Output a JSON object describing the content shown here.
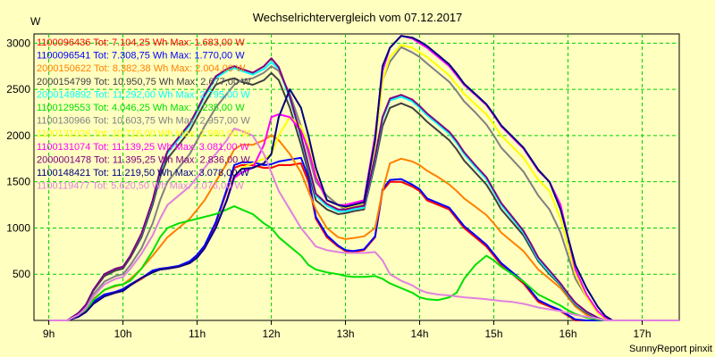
{
  "chart_data": {
    "type": "line",
    "title": "Wechselrichtervergleich vom 07.12.2017",
    "ylabel": "W",
    "xlabel": "",
    "footer": "SunnyReport pinxit",
    "xlim": [
      8.8,
      17.5
    ],
    "ylim": [
      0,
      3100
    ],
    "x_ticks": [
      9,
      10,
      11,
      12,
      13,
      14,
      15,
      16,
      17
    ],
    "x_tick_labels": [
      "9h",
      "10h",
      "11h",
      "12h",
      "13h",
      "14h",
      "15h",
      "16h",
      "17h"
    ],
    "y_ticks": [
      500,
      1000,
      1500,
      2000,
      2500,
      3000
    ],
    "y_tick_labels": [
      "500",
      "1000",
      "1500",
      "2000",
      "2500",
      "3000"
    ],
    "grid": true,
    "legend_position": "top-left",
    "x": [
      9.0,
      9.1,
      9.25,
      9.4,
      9.5,
      9.6,
      9.75,
      9.9,
      10.0,
      10.1,
      10.25,
      10.4,
      10.5,
      10.6,
      10.75,
      10.9,
      11.0,
      11.1,
      11.25,
      11.4,
      11.5,
      11.6,
      11.75,
      11.9,
      12.0,
      12.1,
      12.25,
      12.4,
      12.5,
      12.6,
      12.75,
      12.9,
      13.0,
      13.1,
      13.25,
      13.4,
      13.5,
      13.6,
      13.75,
      13.9,
      14.0,
      14.1,
      14.25,
      14.4,
      14.5,
      14.6,
      14.75,
      14.9,
      15.0,
      15.1,
      15.25,
      15.4,
      15.5,
      15.6,
      15.75,
      15.9,
      16.0,
      16.1,
      16.25,
      16.4,
      16.5,
      16.6,
      16.75,
      16.9,
      17.0,
      17.1,
      17.25,
      17.4,
      17.5
    ],
    "series": [
      {
        "name": "1100096436",
        "legend": "1100096436 Tot: 7.104,25 Wh Max: 1.683,00 W",
        "color": "#ff0000",
        "values": [
          0,
          0,
          0,
          50,
          100,
          200,
          280,
          300,
          330,
          380,
          450,
          530,
          550,
          560,
          580,
          630,
          700,
          800,
          1050,
          1400,
          1650,
          1680,
          1680,
          1650,
          1650,
          1680,
          1680,
          1700,
          1500,
          1100,
          900,
          800,
          750,
          740,
          760,
          900,
          1400,
          1500,
          1500,
          1450,
          1400,
          1300,
          1250,
          1200,
          1100,
          1000,
          900,
          800,
          700,
          600,
          500,
          400,
          300,
          200,
          150,
          100,
          50,
          0,
          0,
          0,
          0,
          0,
          0,
          0,
          0,
          0,
          0,
          0,
          0
        ]
      },
      {
        "name": "1100096541",
        "legend": "1100096541 Tot: 7.308,75 Wh Max: 1.770,00 W",
        "color": "#0000ff",
        "values": [
          0,
          0,
          0,
          50,
          100,
          200,
          280,
          310,
          340,
          390,
          460,
          540,
          560,
          570,
          590,
          640,
          710,
          810,
          1060,
          1420,
          1680,
          1710,
          1710,
          1680,
          1690,
          1720,
          1740,
          1760,
          1550,
          1120,
          920,
          810,
          760,
          750,
          770,
          910,
          1420,
          1520,
          1530,
          1470,
          1420,
          1320,
          1270,
          1220,
          1120,
          1020,
          920,
          820,
          720,
          620,
          520,
          420,
          320,
          220,
          160,
          110,
          60,
          10,
          0,
          0,
          0,
          0,
          0,
          0,
          0,
          0,
          0,
          0,
          0
        ]
      },
      {
        "name": "2000150622",
        "legend": "2000150622 Tot: 8.382,38 Wh Max: 2.004,00 W",
        "color": "#ff8000",
        "values": [
          0,
          0,
          0,
          60,
          120,
          230,
          330,
          370,
          390,
          450,
          560,
          700,
          800,
          900,
          1000,
          1100,
          1200,
          1300,
          1500,
          1700,
          1850,
          1900,
          1900,
          1950,
          2004,
          1950,
          1800,
          1600,
          1400,
          1200,
          1000,
          900,
          880,
          890,
          910,
          1000,
          1400,
          1700,
          1750,
          1720,
          1680,
          1620,
          1550,
          1470,
          1400,
          1320,
          1230,
          1140,
          1050,
          950,
          850,
          750,
          650,
          550,
          450,
          350,
          250,
          150,
          60,
          20,
          0,
          0,
          0,
          0,
          0,
          0,
          0,
          0,
          0
        ]
      },
      {
        "name": "2000154799",
        "legend": "2000154799 Tot: 10.950,75 Wh Max: 2.677,00 W",
        "color": "#404040",
        "values": [
          0,
          0,
          0,
          80,
          160,
          320,
          480,
          540,
          560,
          680,
          900,
          1250,
          1550,
          1750,
          1900,
          2050,
          2200,
          2350,
          2550,
          2600,
          2620,
          2580,
          2550,
          2600,
          2677,
          2600,
          2300,
          1900,
          1600,
          1300,
          1200,
          1150,
          1160,
          1180,
          1200,
          1700,
          2100,
          2300,
          2350,
          2300,
          2230,
          2150,
          2050,
          1950,
          1850,
          1730,
          1600,
          1470,
          1340,
          1200,
          1060,
          920,
          780,
          640,
          500,
          380,
          270,
          170,
          80,
          20,
          0,
          0,
          0,
          0,
          0,
          0,
          0,
          0,
          0
        ]
      },
      {
        "name": "2000149892",
        "legend": "2000149892 Tot: 11.292,00 Wh Max: 2.795,00 W",
        "color": "#00ffff",
        "values": [
          0,
          0,
          0,
          80,
          170,
          330,
          500,
          560,
          580,
          700,
          930,
          1290,
          1600,
          1810,
          1960,
          2110,
          2260,
          2420,
          2620,
          2700,
          2730,
          2700,
          2660,
          2720,
          2795,
          2720,
          2400,
          1980,
          1660,
          1350,
          1240,
          1180,
          1180,
          1200,
          1220,
          1750,
          2180,
          2380,
          2420,
          2370,
          2300,
          2220,
          2120,
          2020,
          1920,
          1800,
          1660,
          1530,
          1390,
          1250,
          1100,
          950,
          810,
          660,
          520,
          390,
          280,
          180,
          90,
          25,
          0,
          0,
          0,
          0,
          0,
          0,
          0,
          0,
          0
        ]
      },
      {
        "name": "1100129553",
        "legend": "1100129553 Tot: 4.046,25 Wh Max: 1.235,00 W",
        "color": "#00e000",
        "values": [
          0,
          0,
          0,
          50,
          110,
          220,
          330,
          380,
          390,
          430,
          560,
          750,
          900,
          1000,
          1050,
          1080,
          1100,
          1120,
          1150,
          1200,
          1235,
          1200,
          1150,
          1050,
          1000,
          900,
          800,
          700,
          600,
          550,
          520,
          500,
          480,
          470,
          470,
          480,
          450,
          400,
          350,
          300,
          250,
          230,
          220,
          250,
          300,
          450,
          600,
          700,
          650,
          580,
          500,
          420,
          350,
          280,
          220,
          160,
          110,
          70,
          30,
          10,
          0,
          0,
          0,
          0,
          0,
          0,
          0,
          0,
          0
        ]
      },
      {
        "name": "1100130966",
        "legend": "1100130966 Tot: 10.603,75 Wh Max: 2.957,00 W",
        "color": "#808080",
        "values": [
          0,
          0,
          0,
          70,
          140,
          280,
          420,
          480,
          500,
          600,
          780,
          1050,
          1300,
          1500,
          1650,
          1800,
          1950,
          2100,
          2300,
          2450,
          2550,
          2600,
          2620,
          2680,
          2750,
          2700,
          2450,
          2100,
          1800,
          1500,
          1350,
          1250,
          1200,
          1220,
          1250,
          1900,
          2600,
          2800,
          2957,
          2900,
          2850,
          2780,
          2680,
          2580,
          2480,
          2370,
          2250,
          2120,
          2000,
          1870,
          1740,
          1610,
          1480,
          1350,
          1200,
          950,
          700,
          450,
          250,
          100,
          20,
          0,
          0,
          0,
          0,
          0,
          0,
          0,
          0
        ]
      },
      {
        "name": "1100131026",
        "legend": "1100131026 Tot: 10.716,00 Wh Max: 2.980,00 W",
        "color": "#ffff00",
        "values": [
          0,
          0,
          0,
          40,
          90,
          180,
          260,
          300,
          320,
          380,
          460,
          520,
          550,
          560,
          580,
          620,
          680,
          780,
          1000,
          1300,
          1560,
          1650,
          1700,
          1750,
          1800,
          2000,
          2200,
          2100,
          1900,
          1600,
          1300,
          1250,
          1220,
          1240,
          1270,
          1900,
          2600,
          2850,
          2980,
          2950,
          2900,
          2850,
          2750,
          2650,
          2550,
          2450,
          2340,
          2230,
          2120,
          2000,
          1880,
          1760,
          1640,
          1520,
          1400,
          1100,
          800,
          500,
          250,
          80,
          20,
          0,
          0,
          0,
          0,
          0,
          0,
          0,
          0
        ]
      },
      {
        "name": "1100131074",
        "legend": "1100131074 Tot: 11.139,25 Wh Max: 3.081,00 W",
        "color": "#ff00ff",
        "values": [
          0,
          0,
          0,
          40,
          90,
          180,
          260,
          300,
          320,
          380,
          460,
          520,
          550,
          560,
          580,
          620,
          680,
          780,
          1000,
          1300,
          1540,
          1600,
          1650,
          1900,
          2200,
          2230,
          2200,
          2050,
          1850,
          1550,
          1300,
          1250,
          1250,
          1270,
          1300,
          2000,
          2700,
          2950,
          3081,
          3050,
          3000,
          2950,
          2850,
          2750,
          2650,
          2550,
          2440,
          2330,
          2220,
          2100,
          1980,
          1860,
          1740,
          1620,
          1500,
          1250,
          900,
          550,
          280,
          100,
          30,
          0,
          0,
          0,
          0,
          0,
          0,
          0,
          0
        ]
      },
      {
        "name": "2000001478",
        "legend": "2000001478 Tot: 11.395,25 Wh Max: 2.836,00 W",
        "color": "#800080",
        "values": [
          0,
          0,
          0,
          80,
          170,
          330,
          500,
          560,
          580,
          700,
          940,
          1300,
          1620,
          1830,
          1980,
          2130,
          2280,
          2440,
          2640,
          2720,
          2750,
          2720,
          2680,
          2750,
          2836,
          2740,
          2420,
          2000,
          1680,
          1370,
          1260,
          1200,
          1200,
          1220,
          1240,
          1770,
          2200,
          2400,
          2440,
          2390,
          2320,
          2240,
          2140,
          2040,
          1940,
          1820,
          1680,
          1550,
          1410,
          1270,
          1120,
          970,
          830,
          680,
          540,
          400,
          290,
          190,
          95,
          30,
          0,
          0,
          0,
          0,
          0,
          0,
          0,
          0,
          0
        ]
      },
      {
        "name": "1100148421",
        "legend": "1100148421 Tot: 11.219,50 Wh Max: 3.078,00 W",
        "color": "#000080",
        "values": [
          0,
          0,
          0,
          40,
          90,
          180,
          260,
          300,
          320,
          380,
          460,
          520,
          550,
          560,
          580,
          620,
          680,
          780,
          1000,
          1300,
          1560,
          1640,
          1650,
          1700,
          1800,
          2200,
          2500,
          2300,
          2000,
          1650,
          1300,
          1250,
          1230,
          1250,
          1280,
          1950,
          2750,
          2950,
          3078,
          3060,
          3020,
          2970,
          2870,
          2770,
          2670,
          2560,
          2450,
          2340,
          2230,
          2110,
          1990,
          1870,
          1750,
          1630,
          1500,
          1200,
          900,
          600,
          350,
          150,
          50,
          0,
          0,
          0,
          0,
          0,
          0,
          0,
          0
        ]
      },
      {
        "name": "1100119477",
        "legend": "1100119477 Tot: 5.620,50 Wh Max: 2.076,00 W",
        "color": "#e080e0",
        "values": [
          0,
          0,
          0,
          60,
          130,
          260,
          390,
          450,
          470,
          560,
          720,
          920,
          1100,
          1250,
          1350,
          1450,
          1550,
          1650,
          1800,
          1950,
          2076,
          2050,
          2000,
          1800,
          1600,
          1400,
          1200,
          1000,
          900,
          800,
          760,
          740,
          730,
          730,
          730,
          740,
          650,
          500,
          430,
          380,
          330,
          300,
          280,
          270,
          260,
          250,
          240,
          230,
          220,
          210,
          200,
          180,
          160,
          140,
          120,
          100,
          80,
          60,
          40,
          20,
          0,
          0,
          0,
          0,
          0,
          0,
          0,
          0,
          0
        ]
      }
    ]
  }
}
